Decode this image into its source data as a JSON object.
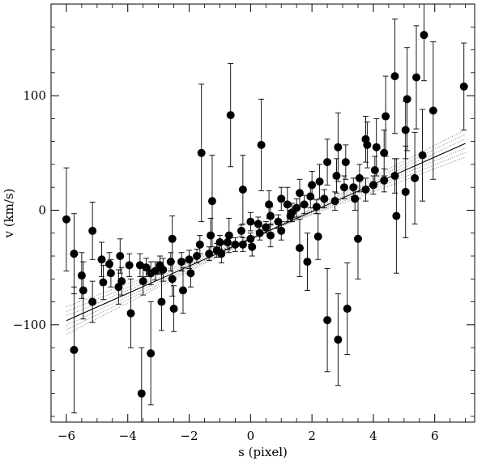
{
  "chart_data": {
    "type": "scatter",
    "title": "",
    "xlabel": "s (pixel)",
    "ylabel": "v (km/s)",
    "xlim": [
      -6.5,
      7.3
    ],
    "ylim": [
      -185,
      180
    ],
    "xticks": [
      -6,
      -4,
      -2,
      0,
      2,
      4,
      6
    ],
    "yticks": [
      -100,
      0,
      100
    ],
    "grid": false,
    "legend": "none",
    "colors": {
      "points": "#000000",
      "fit_line": "#000000",
      "confidence_band": "#555555"
    },
    "fit": {
      "slope": 11.9,
      "intercept": -25,
      "x_range": [
        -6,
        7
      ],
      "band_halfwidth_at_edges": 12
    },
    "series": [
      {
        "points": [
          {
            "x": -6.0,
            "y": -8,
            "err": 45
          },
          {
            "x": -5.75,
            "y": -38,
            "err": 35
          },
          {
            "x": -5.75,
            "y": -122,
            "err": 55
          },
          {
            "x": -5.5,
            "y": -57,
            "err": 20
          },
          {
            "x": -5.45,
            "y": -70,
            "err": 25
          },
          {
            "x": -5.15,
            "y": -18,
            "err": 25
          },
          {
            "x": -5.15,
            "y": -80,
            "err": 18
          },
          {
            "x": -4.85,
            "y": -43,
            "err": 15
          },
          {
            "x": -4.8,
            "y": -63,
            "err": 15
          },
          {
            "x": -4.6,
            "y": -47,
            "err": 10
          },
          {
            "x": -4.55,
            "y": -55,
            "err": 12
          },
          {
            "x": -4.3,
            "y": -67,
            "err": 15
          },
          {
            "x": -4.25,
            "y": -40,
            "err": 15
          },
          {
            "x": -4.2,
            "y": -62,
            "err": 12
          },
          {
            "x": -3.95,
            "y": -48,
            "err": 10
          },
          {
            "x": -3.9,
            "y": -90,
            "err": 30
          },
          {
            "x": -3.6,
            "y": -48,
            "err": 10
          },
          {
            "x": -3.55,
            "y": -160,
            "err": 40
          },
          {
            "x": -3.5,
            "y": -62,
            "err": 12
          },
          {
            "x": -3.4,
            "y": -50,
            "err": 8
          },
          {
            "x": -3.25,
            "y": -55,
            "err": 10
          },
          {
            "x": -3.25,
            "y": -125,
            "err": 45
          },
          {
            "x": -3.1,
            "y": -53,
            "err": 8
          },
          {
            "x": -2.95,
            "y": -48,
            "err": 8
          },
          {
            "x": -2.9,
            "y": -80,
            "err": 25
          },
          {
            "x": -2.85,
            "y": -52,
            "err": 10
          },
          {
            "x": -2.6,
            "y": -45,
            "err": 8
          },
          {
            "x": -2.55,
            "y": -25,
            "err": 20
          },
          {
            "x": -2.55,
            "y": -60,
            "err": 15
          },
          {
            "x": -2.5,
            "y": -86,
            "err": 20
          },
          {
            "x": -2.25,
            "y": -45,
            "err": 8
          },
          {
            "x": -2.2,
            "y": -70,
            "err": 20
          },
          {
            "x": -2.0,
            "y": -43,
            "err": 8
          },
          {
            "x": -1.95,
            "y": -55,
            "err": 12
          },
          {
            "x": -1.75,
            "y": -40,
            "err": 6
          },
          {
            "x": -1.65,
            "y": -30,
            "err": 8
          },
          {
            "x": -1.6,
            "y": 50,
            "err": 60
          },
          {
            "x": -1.35,
            "y": -38,
            "err": 6
          },
          {
            "x": -1.3,
            "y": -22,
            "err": 15
          },
          {
            "x": -1.25,
            "y": 8,
            "err": 40
          },
          {
            "x": -1.1,
            "y": -35,
            "err": 6
          },
          {
            "x": -1.0,
            "y": -28,
            "err": 6
          },
          {
            "x": -0.95,
            "y": -38,
            "err": 8
          },
          {
            "x": -0.75,
            "y": -28,
            "err": 6
          },
          {
            "x": -0.7,
            "y": -22,
            "err": 15
          },
          {
            "x": -0.65,
            "y": 83,
            "err": 45
          },
          {
            "x": -0.5,
            "y": -30,
            "err": 6
          },
          {
            "x": -0.3,
            "y": -18,
            "err": 5
          },
          {
            "x": -0.25,
            "y": -30,
            "err": 6
          },
          {
            "x": -0.25,
            "y": 18,
            "err": 30
          },
          {
            "x": 0.0,
            "y": -25,
            "err": 5
          },
          {
            "x": 0.0,
            "y": -10,
            "err": 8
          },
          {
            "x": 0.05,
            "y": -32,
            "err": 8
          },
          {
            "x": 0.25,
            "y": -12,
            "err": 6
          },
          {
            "x": 0.3,
            "y": -20,
            "err": 6
          },
          {
            "x": 0.35,
            "y": 57,
            "err": 40
          },
          {
            "x": 0.5,
            "y": -15,
            "err": 5
          },
          {
            "x": 0.6,
            "y": 5,
            "err": 12
          },
          {
            "x": 0.65,
            "y": -5,
            "err": 8
          },
          {
            "x": 0.65,
            "y": -22,
            "err": 10
          },
          {
            "x": 0.9,
            "y": -10,
            "err": 6
          },
          {
            "x": 1.0,
            "y": -18,
            "err": 8
          },
          {
            "x": 1.0,
            "y": 10,
            "err": 10
          },
          {
            "x": 1.2,
            "y": 5,
            "err": 15
          },
          {
            "x": 1.3,
            "y": -5,
            "err": 5
          },
          {
            "x": 1.35,
            "y": -2,
            "err": 8
          },
          {
            "x": 1.5,
            "y": 2,
            "err": 8
          },
          {
            "x": 1.6,
            "y": 15,
            "err": 12
          },
          {
            "x": 1.6,
            "y": -33,
            "err": 25
          },
          {
            "x": 1.75,
            "y": 5,
            "err": 8
          },
          {
            "x": 1.85,
            "y": -45,
            "err": 25
          },
          {
            "x": 1.95,
            "y": 12,
            "err": 10
          },
          {
            "x": 2.0,
            "y": 22,
            "err": 12
          },
          {
            "x": 2.15,
            "y": 3,
            "err": 6
          },
          {
            "x": 2.2,
            "y": -23,
            "err": 20
          },
          {
            "x": 2.25,
            "y": 25,
            "err": 15
          },
          {
            "x": 2.4,
            "y": 10,
            "err": 8
          },
          {
            "x": 2.5,
            "y": 42,
            "err": 20
          },
          {
            "x": 2.5,
            "y": -96,
            "err": 45
          },
          {
            "x": 2.75,
            "y": 8,
            "err": 8
          },
          {
            "x": 2.8,
            "y": 30,
            "err": 15
          },
          {
            "x": 2.85,
            "y": 55,
            "err": 30
          },
          {
            "x": 2.85,
            "y": -113,
            "err": 40
          },
          {
            "x": 3.05,
            "y": 20,
            "err": 10
          },
          {
            "x": 3.1,
            "y": 42,
            "err": 15
          },
          {
            "x": 3.15,
            "y": -86,
            "err": 40
          },
          {
            "x": 3.35,
            "y": 20,
            "err": 8
          },
          {
            "x": 3.4,
            "y": 10,
            "err": 10
          },
          {
            "x": 3.5,
            "y": -25,
            "err": 35
          },
          {
            "x": 3.55,
            "y": 28,
            "err": 12
          },
          {
            "x": 3.75,
            "y": 18,
            "err": 10
          },
          {
            "x": 3.75,
            "y": 62,
            "err": 20
          },
          {
            "x": 3.8,
            "y": 57,
            "err": 20
          },
          {
            "x": 4.0,
            "y": 22,
            "err": 8
          },
          {
            "x": 4.05,
            "y": 35,
            "err": 12
          },
          {
            "x": 4.1,
            "y": 55,
            "err": 25
          },
          {
            "x": 4.35,
            "y": 26,
            "err": 10
          },
          {
            "x": 4.35,
            "y": 50,
            "err": 20
          },
          {
            "x": 4.4,
            "y": 82,
            "err": 35
          },
          {
            "x": 4.7,
            "y": 30,
            "err": 15
          },
          {
            "x": 4.7,
            "y": 117,
            "err": 50
          },
          {
            "x": 4.75,
            "y": -5,
            "err": 50
          },
          {
            "x": 5.05,
            "y": 16,
            "err": 40
          },
          {
            "x": 5.05,
            "y": 70,
            "err": 25
          },
          {
            "x": 5.1,
            "y": 97,
            "err": 45
          },
          {
            "x": 5.35,
            "y": 28,
            "err": 40
          },
          {
            "x": 5.4,
            "y": 116,
            "err": 45
          },
          {
            "x": 5.6,
            "y": 48,
            "err": 40
          },
          {
            "x": 5.65,
            "y": 153,
            "err": 40
          },
          {
            "x": 5.95,
            "y": 87,
            "err": 60
          },
          {
            "x": 6.95,
            "y": 108,
            "err": 38
          }
        ]
      }
    ]
  }
}
